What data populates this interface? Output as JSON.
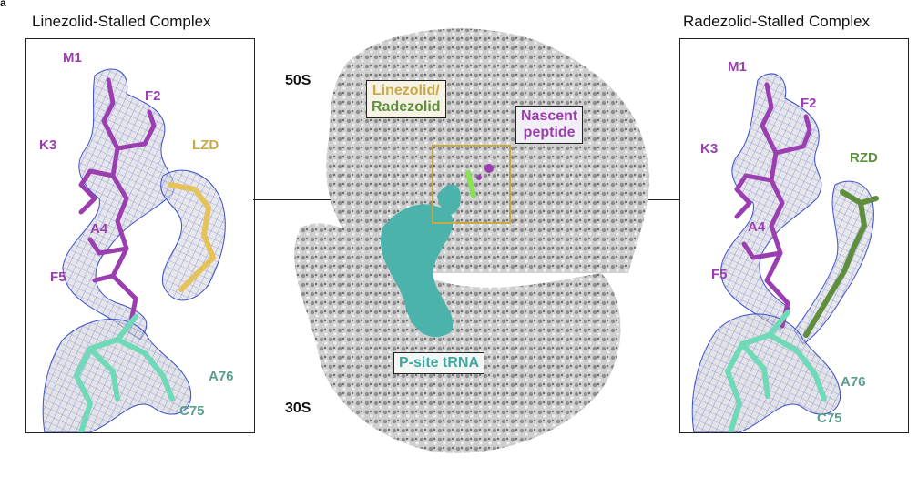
{
  "figure_letter": "a",
  "left_panel": {
    "title": "Linezolid-Stalled Complex",
    "residues": {
      "m1": "M1",
      "f2": "F2",
      "k3": "K3",
      "a4": "A4",
      "f5": "F5"
    },
    "drug": "LZD",
    "nucleotides": {
      "a76": "A76",
      "c75": "C75"
    }
  },
  "right_panel": {
    "title": "Radezolid-Stalled Complex",
    "residues": {
      "m1": "M1",
      "f2": "F2",
      "k3": "K3",
      "a4": "A4",
      "f5": "F5"
    },
    "drug": "RZD",
    "nucleotides": {
      "a76": "A76",
      "c75": "C75"
    }
  },
  "center": {
    "subunit_large": "50S",
    "subunit_small": "30S",
    "drug_label_line1": "Linezolid/",
    "drug_label_line2": "Radezolid",
    "peptide_label_line1": "Nascent",
    "peptide_label_line2": "peptide",
    "trna_label": "P-site tRNA"
  },
  "colors": {
    "peptide": "#9b3fb0",
    "trna": "#6fd9b8",
    "trna_surface": "#4bb3ac",
    "linezolid": "#e6c35a",
    "radezolid": "#5f8f3e",
    "mesh": "#3b4fc9",
    "ribosome": "#bdbdbd"
  }
}
